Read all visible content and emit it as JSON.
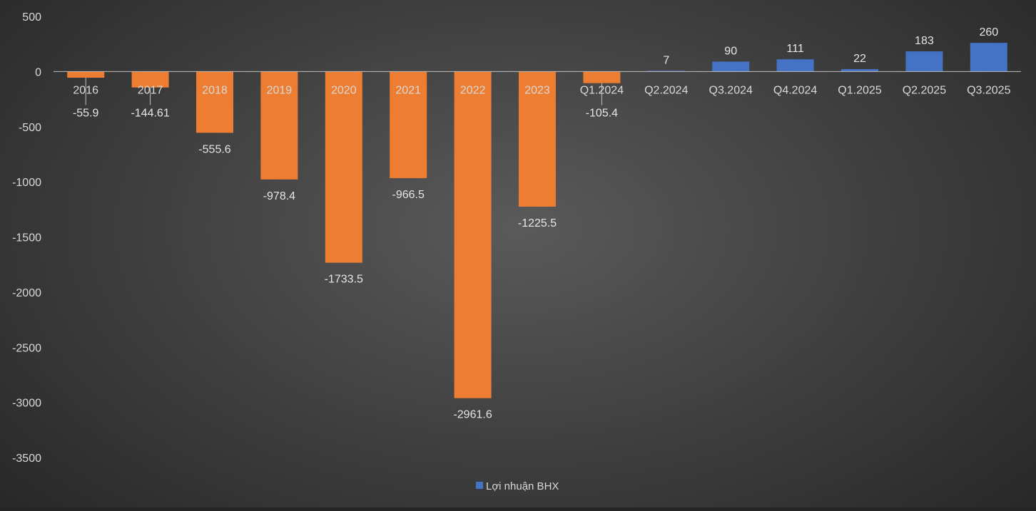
{
  "chart_data": {
    "type": "bar",
    "title": "",
    "xlabel": "",
    "ylabel": "",
    "ylim": [
      -3500,
      500
    ],
    "yticks": [
      500,
      0,
      -500,
      -1000,
      -1500,
      -2000,
      -2500,
      -3000,
      -3500
    ],
    "ytick_labels": [
      "500",
      "0",
      "-500",
      "-1000",
      "-1500",
      "-2000",
      "-2500",
      "-3000",
      "-3500"
    ],
    "categories": [
      "2016",
      "2017",
      "2018",
      "2019",
      "2020",
      "2021",
      "2022",
      "2023",
      "Q1.2024",
      "Q2.2024",
      "Q3.2024",
      "Q4.2024",
      "Q1.2025",
      "Q2.2025",
      "Q3.2025"
    ],
    "values": [
      -55.9,
      -144.61,
      -555.6,
      -978.4,
      -1733.5,
      -966.5,
      -2961.6,
      -1225.5,
      -105.4,
      7,
      90,
      111,
      22,
      183,
      260
    ],
    "value_labels": [
      "-55.9",
      "-144.61",
      "-555.6",
      "-978.4",
      "-1733.5",
      "-966.5",
      "-2961.6",
      "-1225.5",
      "-105.4",
      "7",
      "90",
      "111",
      "22",
      "183",
      "260"
    ],
    "series": [
      {
        "name": "Lợi nhuận BHX",
        "values": [
          -55.9,
          -144.61,
          -555.6,
          -978.4,
          -1733.5,
          -966.5,
          -2961.6,
          -1225.5,
          -105.4,
          7,
          90,
          111,
          22,
          183,
          260
        ]
      }
    ],
    "colors": {
      "negative": "#ed7d31",
      "positive": "#4472c4",
      "axis": "#bfbfbf",
      "text": "#d9d9d9"
    },
    "grid": false,
    "legend": {
      "position": "bottom",
      "label": "Lợi nhuận BHX"
    }
  }
}
